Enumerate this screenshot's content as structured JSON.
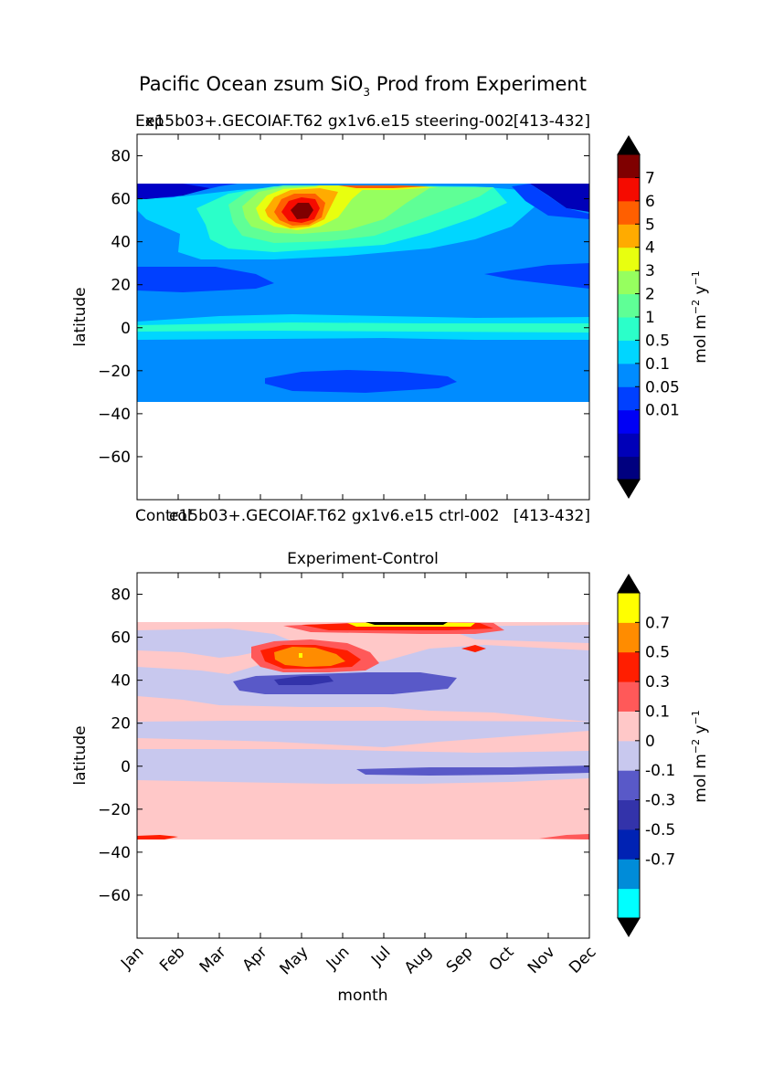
{
  "page": {
    "suptitle_main": "Pacific Ocean zsum SiO",
    "suptitle_sub": "3",
    "suptitle_rest": " Prod from Experiment"
  },
  "chart_data": [
    {
      "type": "heatmap",
      "title": "",
      "label_left": "Exp",
      "label_mid": "e15b03+.GECOIAF.T62 gx1v6.e15 steering-002",
      "label_right": "[413-432]",
      "xlabel": "",
      "ylabel": "latitude",
      "ylim": [
        -80,
        90
      ],
      "yticks": [
        80,
        60,
        40,
        20,
        0,
        -20,
        -40,
        -60
      ],
      "xlim": [
        0,
        11
      ],
      "grid": false,
      "colorbar": {
        "label": "mol m",
        "label_sup": "−2",
        "label_unit": " y",
        "label_unit_sup": "−1",
        "ticks": [
          "7",
          "6",
          "5",
          "4",
          "3",
          "2",
          "1",
          "0.5",
          "0.1",
          "0.05",
          "0.01"
        ],
        "colors": [
          "#00007f",
          "#0000b8",
          "#0000f5",
          "#0040ff",
          "#008cff",
          "#00d6ff",
          "#2bffc9",
          "#5fff96",
          "#96ff5f",
          "#e8ff0f",
          "#ffab00",
          "#ff5f00",
          "#f50b00",
          "#7f0000"
        ],
        "extend_colors": {
          "min": "#000000",
          "max": "#000000"
        }
      },
      "data_extent": {
        "lat_min": -34,
        "lat_max": 67
      },
      "features": [
        {
          "name": "subpolar bloom",
          "month": 4.1,
          "lat": 53,
          "value": ">7"
        },
        {
          "name": "north subtropical low",
          "lat": 24,
          "value": "0.05"
        },
        {
          "name": "south subtropical low",
          "month": 5.2,
          "lat": -24,
          "value": "0.05"
        },
        {
          "name": "equatorial band",
          "lat": 0,
          "value": "0.5-1"
        }
      ]
    },
    {
      "type": "heatmap",
      "title": "Experiment-Control",
      "label_left": "Control",
      "label_mid": "e15b03+.GECOIAF.T62 gx1v6.e15 ctrl-002",
      "label_right": "[413-432]",
      "xlabel": "month",
      "ylabel": "latitude",
      "ylim": [
        -80,
        90
      ],
      "yticks": [
        80,
        60,
        40,
        20,
        0,
        -20,
        -40,
        -60
      ],
      "xticks": [
        "Jan",
        "Feb",
        "Mar",
        "Apr",
        "May",
        "Jun",
        "Jul",
        "Aug",
        "Sep",
        "Oct",
        "Nov",
        "Dec"
      ],
      "xlim": [
        0,
        11
      ],
      "grid": false,
      "colorbar": {
        "label": "mol m",
        "label_sup": "−2",
        "label_unit": " y",
        "label_unit_sup": "−1",
        "ticks": [
          "0.7",
          "0.5",
          "0.3",
          "0.1",
          "0",
          "-0.1",
          "-0.3",
          "-0.5",
          "-0.7"
        ],
        "colors": [
          "#00ffff",
          "#008cd9",
          "#0022b3",
          "#3333aa",
          "#5959c8",
          "#c8c8ee",
          "#ffc8c8",
          "#ff5959",
          "#ff1e00",
          "#ff8c00",
          "#ffff00"
        ],
        "extend_colors": {
          "min": "#000000",
          "max": "#000000"
        }
      },
      "data_extent": {
        "lat_min": -34,
        "lat_max": 67
      },
      "features": [
        {
          "name": "subpolar positive anomaly",
          "month": 4.1,
          "lat": 51,
          "value": "0.5"
        },
        {
          "name": "mid-latitude negative band",
          "month": 4.5,
          "lat": 40,
          "value": "-0.3"
        },
        {
          "name": "high-latitude positive strip",
          "month": 7,
          "lat": 65,
          "value": ">0.7"
        }
      ]
    }
  ]
}
